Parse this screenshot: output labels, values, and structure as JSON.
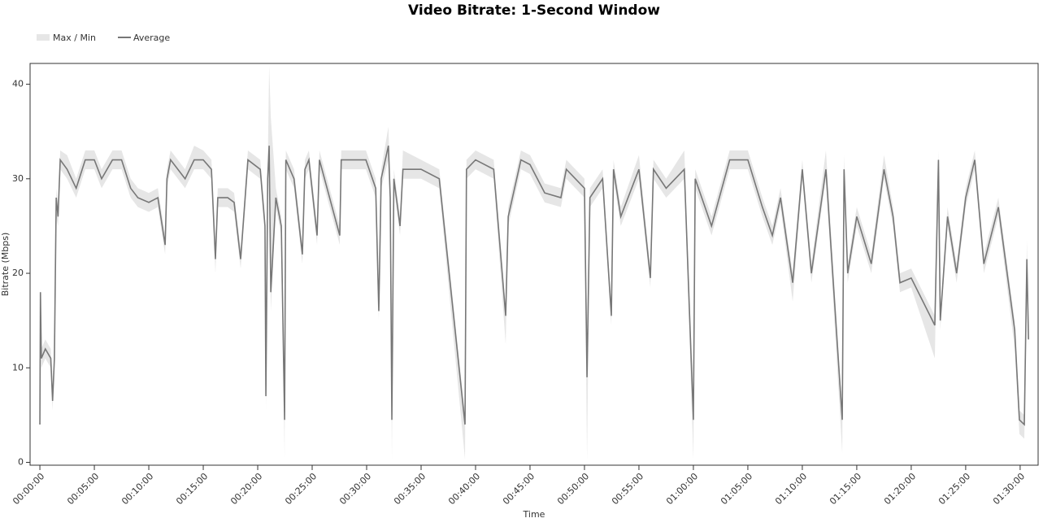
{
  "chart_data": {
    "type": "line",
    "title": "Video Bitrate: 1-Second Window",
    "x_label": "Time",
    "y_label": "Bitrate (Mbps)",
    "xlim": [
      -54,
      5499
    ],
    "ylim": [
      -0.3,
      42.2
    ],
    "yticks": [
      0,
      10,
      20,
      30,
      40
    ],
    "xticks": [
      {
        "value": 0,
        "label": "00:00:00"
      },
      {
        "value": 300,
        "label": "00:05:00"
      },
      {
        "value": 600,
        "label": "00:10:00"
      },
      {
        "value": 900,
        "label": "00:15:00"
      },
      {
        "value": 1200,
        "label": "00:20:00"
      },
      {
        "value": 1500,
        "label": "00:25:00"
      },
      {
        "value": 1800,
        "label": "00:30:00"
      },
      {
        "value": 2100,
        "label": "00:35:00"
      },
      {
        "value": 2400,
        "label": "00:40:00"
      },
      {
        "value": 2700,
        "label": "00:45:00"
      },
      {
        "value": 3000,
        "label": "00:50:00"
      },
      {
        "value": 3300,
        "label": "00:55:00"
      },
      {
        "value": 3600,
        "label": "01:00:00"
      },
      {
        "value": 3900,
        "label": "01:05:00"
      },
      {
        "value": 4200,
        "label": "01:10:00"
      },
      {
        "value": 4500,
        "label": "01:15:00"
      },
      {
        "value": 4800,
        "label": "01:20:00"
      },
      {
        "value": 5100,
        "label": "01:25:00"
      },
      {
        "value": 5400,
        "label": "01:30:00"
      }
    ],
    "x": [
      0,
      3,
      8,
      30,
      60,
      70,
      80,
      90,
      100,
      112,
      150,
      200,
      250,
      300,
      340,
      400,
      450,
      500,
      540,
      600,
      650,
      690,
      700,
      720,
      800,
      850,
      900,
      945,
      967,
      980,
      1035,
      1070,
      1106,
      1146,
      1214,
      1240,
      1245,
      1255,
      1263,
      1272,
      1300,
      1330,
      1348,
      1355,
      1400,
      1446,
      1460,
      1482,
      1527,
      1540,
      1652,
      1660,
      1796,
      1850,
      1867,
      1880,
      1920,
      1930,
      1939,
      1950,
      1984,
      2000,
      2100,
      2200,
      2342,
      2350,
      2400,
      2500,
      2566,
      2580,
      2650,
      2700,
      2781,
      2870,
      2900,
      3000,
      3014,
      3030,
      3100,
      3148,
      3160,
      3200,
      3300,
      3363,
      3380,
      3450,
      3550,
      3600,
      3610,
      3700,
      3800,
      3900,
      3980,
      4035,
      4080,
      4147,
      4200,
      4250,
      4330,
      4420,
      4430,
      4450,
      4500,
      4580,
      4650,
      4700,
      4738,
      4800,
      4930,
      4950,
      4960,
      5000,
      5050,
      5100,
      5150,
      5200,
      5280,
      5370,
      5396,
      5423,
      5437,
      5446
    ],
    "band": {
      "name": "Max / Min",
      "color": "#e6e6e6",
      "max": [
        5,
        18.5,
        12,
        13,
        12,
        7.5,
        12,
        29,
        27,
        33,
        32.5,
        30,
        33,
        33,
        31,
        33,
        33,
        30,
        29,
        28.5,
        29,
        24,
        31,
        33,
        31,
        33.5,
        33,
        32,
        22.5,
        29,
        29,
        28.5,
        22.5,
        33,
        32,
        26,
        8,
        31,
        42,
        36.5,
        29,
        26,
        5.5,
        33,
        31,
        23,
        32,
        33,
        25,
        33,
        25,
        33,
        33,
        30,
        17,
        31,
        35.5,
        29,
        5.5,
        31,
        26,
        33,
        32,
        31,
        5,
        32,
        33,
        32,
        16.5,
        27,
        33,
        32.5,
        29.5,
        29,
        32,
        30,
        10,
        29,
        31,
        16.5,
        32,
        27,
        32.5,
        20.5,
        32,
        30,
        33,
        5.5,
        31,
        26,
        33,
        33,
        28,
        25,
        29,
        20,
        32,
        21,
        33,
        5.5,
        32.5,
        21,
        27,
        22,
        32.5,
        27,
        20,
        20.5,
        15.5,
        33,
        16,
        27,
        21,
        29,
        33,
        22,
        28,
        15,
        5.5,
        5,
        23.5,
        14
      ],
      "min": [
        3,
        16,
        10,
        11,
        10,
        5.5,
        10,
        26,
        25,
        31,
        30,
        28,
        31,
        31,
        29,
        31,
        31,
        28,
        27,
        26.5,
        27,
        22,
        29,
        31,
        29,
        31,
        31,
        30,
        20,
        27,
        27,
        26.5,
        20.5,
        31,
        30,
        24,
        5.5,
        29,
        32,
        16,
        27,
        24,
        0.5,
        31,
        29,
        21,
        30,
        31,
        23,
        31,
        23,
        31,
        31,
        28,
        15,
        29,
        32,
        27,
        0.2,
        29,
        24,
        30,
        30,
        29,
        0.3,
        30,
        31,
        30,
        12.5,
        25,
        31,
        30.5,
        27.5,
        27,
        30,
        28,
        0.2,
        27,
        29,
        14.5,
        30,
        25,
        30,
        18.5,
        30,
        28,
        30,
        0.3,
        29,
        24,
        31,
        31,
        26,
        23,
        27,
        17,
        30,
        19,
        30,
        1,
        30,
        19,
        25,
        20,
        30,
        25,
        18,
        18.5,
        11,
        31,
        14,
        25,
        19,
        27,
        31,
        20,
        26,
        12,
        3,
        2.5,
        20.5,
        12
      ]
    },
    "series": [
      {
        "name": "Average",
        "color": "#777777",
        "values": [
          4,
          18,
          11,
          12,
          11,
          6.5,
          11,
          28,
          26,
          32,
          31,
          29,
          32,
          32,
          30,
          32,
          32,
          29,
          28,
          27.5,
          28,
          23,
          30,
          32,
          30,
          32,
          32,
          31,
          21.5,
          28,
          28,
          27.5,
          21.5,
          32,
          31,
          25,
          7,
          30,
          33.5,
          18,
          28,
          25,
          4.5,
          32,
          30,
          22,
          31,
          32,
          24,
          32,
          24,
          32,
          32,
          29,
          16,
          30,
          33.5,
          28,
          4.5,
          30,
          25,
          31,
          31,
          30,
          4,
          31,
          32,
          31,
          15.5,
          26,
          32,
          31.5,
          28.5,
          28,
          31,
          29,
          9,
          28,
          30,
          15.5,
          31,
          26,
          31,
          19.5,
          31,
          29,
          31,
          4.5,
          30,
          25,
          32,
          32,
          27,
          24,
          28,
          19,
          31,
          20,
          31,
          4.5,
          31,
          20,
          26,
          21,
          31,
          26,
          19,
          19.5,
          14.5,
          32,
          15,
          26,
          20,
          28,
          32,
          21,
          27,
          14,
          4.5,
          4,
          21.5,
          13
        ]
      }
    ]
  }
}
